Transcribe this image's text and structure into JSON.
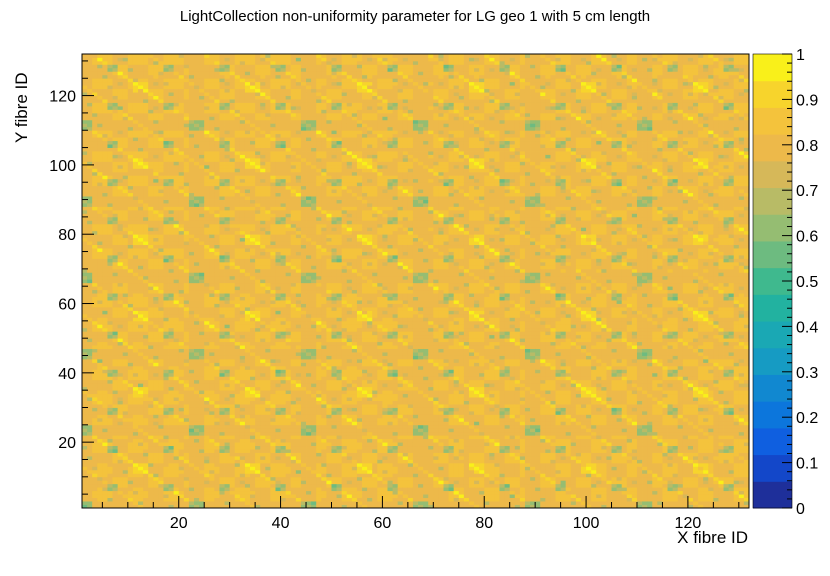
{
  "chart_data": {
    "type": "heatmap",
    "title": "LightCollection non-uniformity parameter for LG geo 1 with 5 cm length",
    "xlabel": "X fibre ID",
    "ylabel": "Y fibre ID",
    "xlim": [
      1,
      132
    ],
    "ylim": [
      1,
      132
    ],
    "zlim": [
      0,
      1
    ],
    "x_ticks": [
      20,
      40,
      60,
      80,
      100,
      120
    ],
    "y_ticks": [
      20,
      40,
      60,
      80,
      100,
      120
    ],
    "z_ticks": [
      0,
      0.1,
      0.2,
      0.3,
      0.4,
      0.5,
      0.6,
      0.7,
      0.8,
      0.9,
      1
    ],
    "z_tick_labels": [
      "0",
      "0.1",
      "0.2",
      "0.3",
      "0.4",
      "0.5",
      "0.6",
      "0.7",
      "0.8",
      "0.9",
      "1"
    ],
    "pattern": {
      "period_x": 22,
      "period_y": 22,
      "value_range": [
        0.55,
        0.97
      ],
      "description_values": "Periodic pattern of bin values ranging ~0.55 (green) to ~0.97 (yellow); mostly 0.75-0.85"
    },
    "palette": [
      "#1e2f9a",
      "#1347c9",
      "#0f5fe0",
      "#0c76dc",
      "#1188d0",
      "#169bc3",
      "#1aa8b4",
      "#22b2a0",
      "#3fb98e",
      "#6dbb80",
      "#95bd72",
      "#b8bb66",
      "#d6b859",
      "#edb94a",
      "#f4c33c",
      "#f7d42c",
      "#f9f01a"
    ],
    "grid": false
  }
}
